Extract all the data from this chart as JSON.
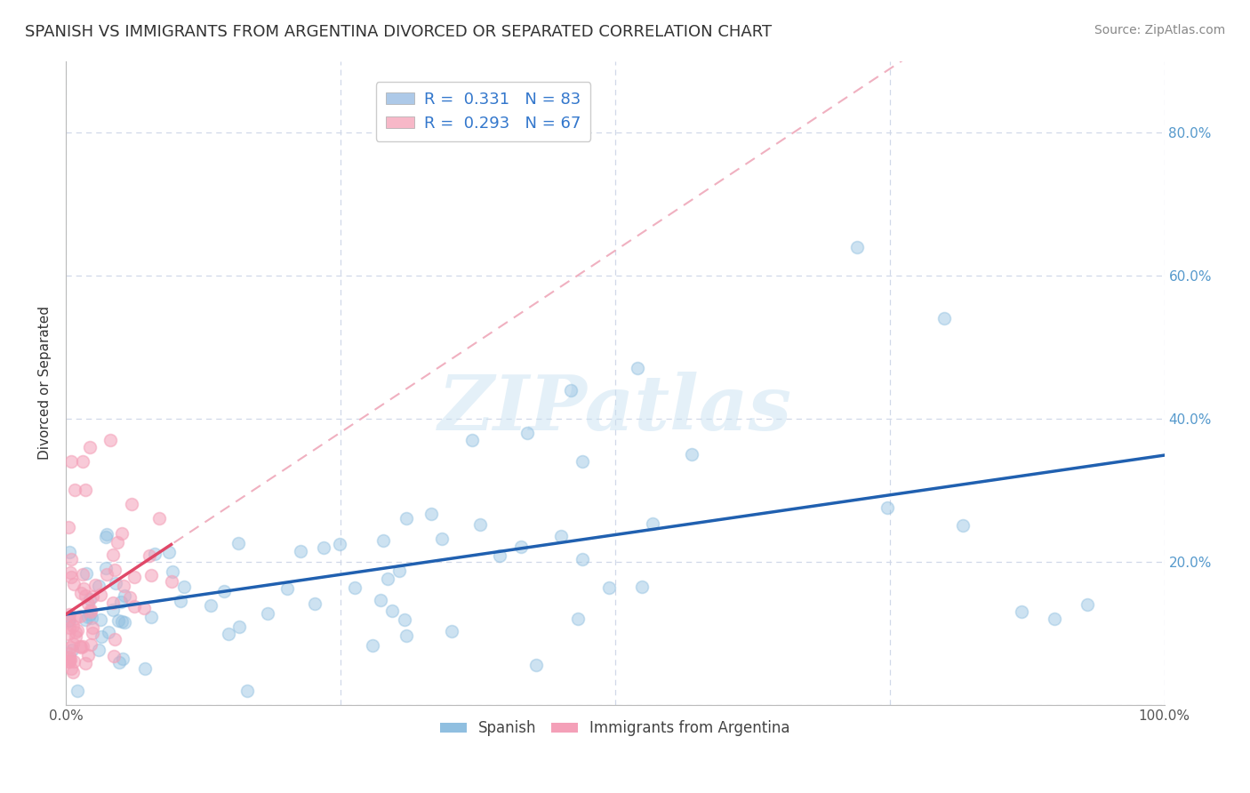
{
  "title": "SPANISH VS IMMIGRANTS FROM ARGENTINA DIVORCED OR SEPARATED CORRELATION CHART",
  "source_text": "Source: ZipAtlas.com",
  "ylabel": "Divorced or Separated",
  "xlim": [
    0.0,
    1.0
  ],
  "ylim": [
    0.0,
    0.9
  ],
  "legend_label1": "R =  0.331   N = 83",
  "legend_label2": "R =  0.293   N = 67",
  "legend_color1": "#adc9e8",
  "legend_color2": "#f7b8c8",
  "color_blue": "#90bfe0",
  "color_pink": "#f4a0b8",
  "line_color_blue": "#2060b0",
  "line_color_pink": "#e04868",
  "dashed_color_pink": "#f0b0c0",
  "watermark": "ZIPatlas",
  "background_color": "#ffffff",
  "grid_color": "#d0d8e8",
  "title_fontsize": 13,
  "axis_label_fontsize": 11,
  "tick_fontsize": 11
}
